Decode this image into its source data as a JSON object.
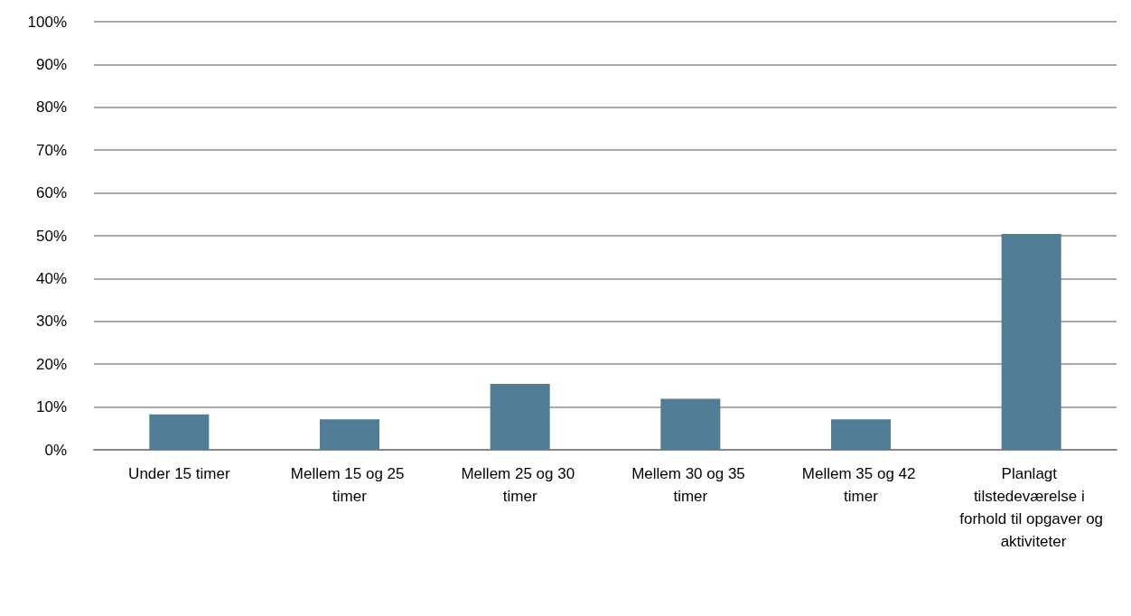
{
  "chart_data": {
    "type": "bar",
    "categories": [
      "Under 15 timer",
      "Mellem 15 og 25 timer",
      "Mellem 25 og 30 timer",
      "Mellem 30 og 35 timer",
      "Mellem 35 og 42 timer",
      "Planlagt tilstedeværelse i forhold til opgaver og aktiviteter"
    ],
    "values": [
      8.3,
      7.1,
      15.4,
      11.9,
      7.1,
      50.4
    ],
    "color": "#527d96",
    "ylim": [
      0,
      100
    ],
    "yticks": [
      {
        "value": 0,
        "label": "0%"
      },
      {
        "value": 10,
        "label": "10%"
      },
      {
        "value": 20,
        "label": "20%"
      },
      {
        "value": 30,
        "label": "30%"
      },
      {
        "value": 40,
        "label": "40%"
      },
      {
        "value": 50,
        "label": "50%"
      },
      {
        "value": 60,
        "label": "60%"
      },
      {
        "value": 70,
        "label": "70%"
      },
      {
        "value": 80,
        "label": "80%"
      },
      {
        "value": 90,
        "label": "90%"
      },
      {
        "value": 100,
        "label": "100%"
      }
    ],
    "grid": "y"
  }
}
